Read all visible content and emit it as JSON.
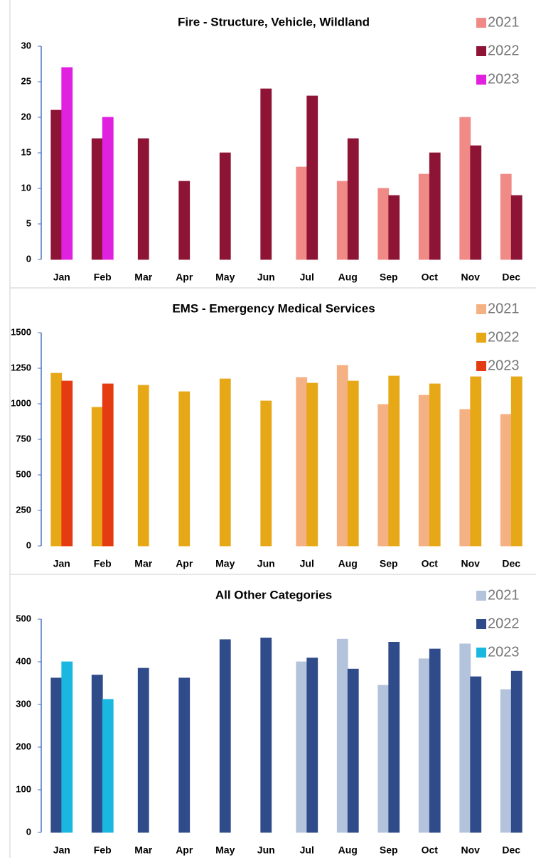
{
  "chart_data": [
    {
      "type": "bar",
      "title": "Fire - Structure, Vehicle, Wildland",
      "categories": [
        "Jan",
        "Feb",
        "Mar",
        "Apr",
        "May",
        "Jun",
        "Jul",
        "Aug",
        "Sep",
        "Oct",
        "Nov",
        "Dec"
      ],
      "series": [
        {
          "name": "2021",
          "color": "#f08a86",
          "values": [
            null,
            null,
            null,
            null,
            null,
            null,
            13,
            11,
            10,
            12,
            20,
            12
          ]
        },
        {
          "name": "2022",
          "color": "#8e1436",
          "values": [
            21,
            17,
            17,
            11,
            15,
            24,
            23,
            17,
            9,
            15,
            16,
            9
          ]
        },
        {
          "name": "2023",
          "color": "#e021e0",
          "values": [
            27,
            20,
            null,
            null,
            null,
            null,
            null,
            null,
            null,
            null,
            null,
            null
          ]
        }
      ],
      "ylim": [
        0,
        30
      ],
      "yticks": [
        0,
        5,
        10,
        15,
        20,
        25,
        30
      ],
      "legend": "top-right"
    },
    {
      "type": "bar",
      "title": "EMS - Emergency Medical Services",
      "categories": [
        "Jan",
        "Feb",
        "Mar",
        "Apr",
        "May",
        "Jun",
        "Jul",
        "Aug",
        "Sep",
        "Oct",
        "Nov",
        "Dec"
      ],
      "series": [
        {
          "name": "2021",
          "color": "#f4b183",
          "values": [
            null,
            null,
            null,
            null,
            null,
            null,
            1185,
            1270,
            995,
            1060,
            960,
            925
          ]
        },
        {
          "name": "2022",
          "color": "#e6a817",
          "values": [
            1215,
            975,
            1130,
            1085,
            1175,
            1020,
            1145,
            1160,
            1195,
            1140,
            1190,
            1190
          ]
        },
        {
          "name": "2023",
          "color": "#e53b12",
          "values": [
            1160,
            1140,
            null,
            null,
            null,
            null,
            null,
            null,
            null,
            null,
            null,
            null
          ]
        }
      ],
      "ylim": [
        0,
        1500
      ],
      "yticks": [
        0,
        250,
        500,
        750,
        1000,
        1250,
        1500
      ],
      "legend": "top-right"
    },
    {
      "type": "bar",
      "title": "All Other Categories",
      "categories": [
        "Jan",
        "Feb",
        "Mar",
        "Apr",
        "May",
        "Jun",
        "Jul",
        "Aug",
        "Sep",
        "Oct",
        "Nov",
        "Dec"
      ],
      "series": [
        {
          "name": "2021",
          "color": "#b4c3dc",
          "values": [
            null,
            null,
            null,
            null,
            null,
            null,
            400,
            453,
            345,
            407,
            442,
            335
          ]
        },
        {
          "name": "2022",
          "color": "#2f4b8a",
          "values": [
            362,
            369,
            385,
            362,
            452,
            456,
            409,
            383,
            446,
            430,
            365,
            378
          ]
        },
        {
          "name": "2023",
          "color": "#1ab8e0",
          "values": [
            400,
            312,
            null,
            null,
            null,
            null,
            null,
            null,
            null,
            null,
            null,
            null
          ]
        }
      ],
      "ylim": [
        0,
        500
      ],
      "yticks": [
        0,
        100,
        200,
        300,
        400,
        500
      ],
      "legend": "top-right"
    }
  ]
}
